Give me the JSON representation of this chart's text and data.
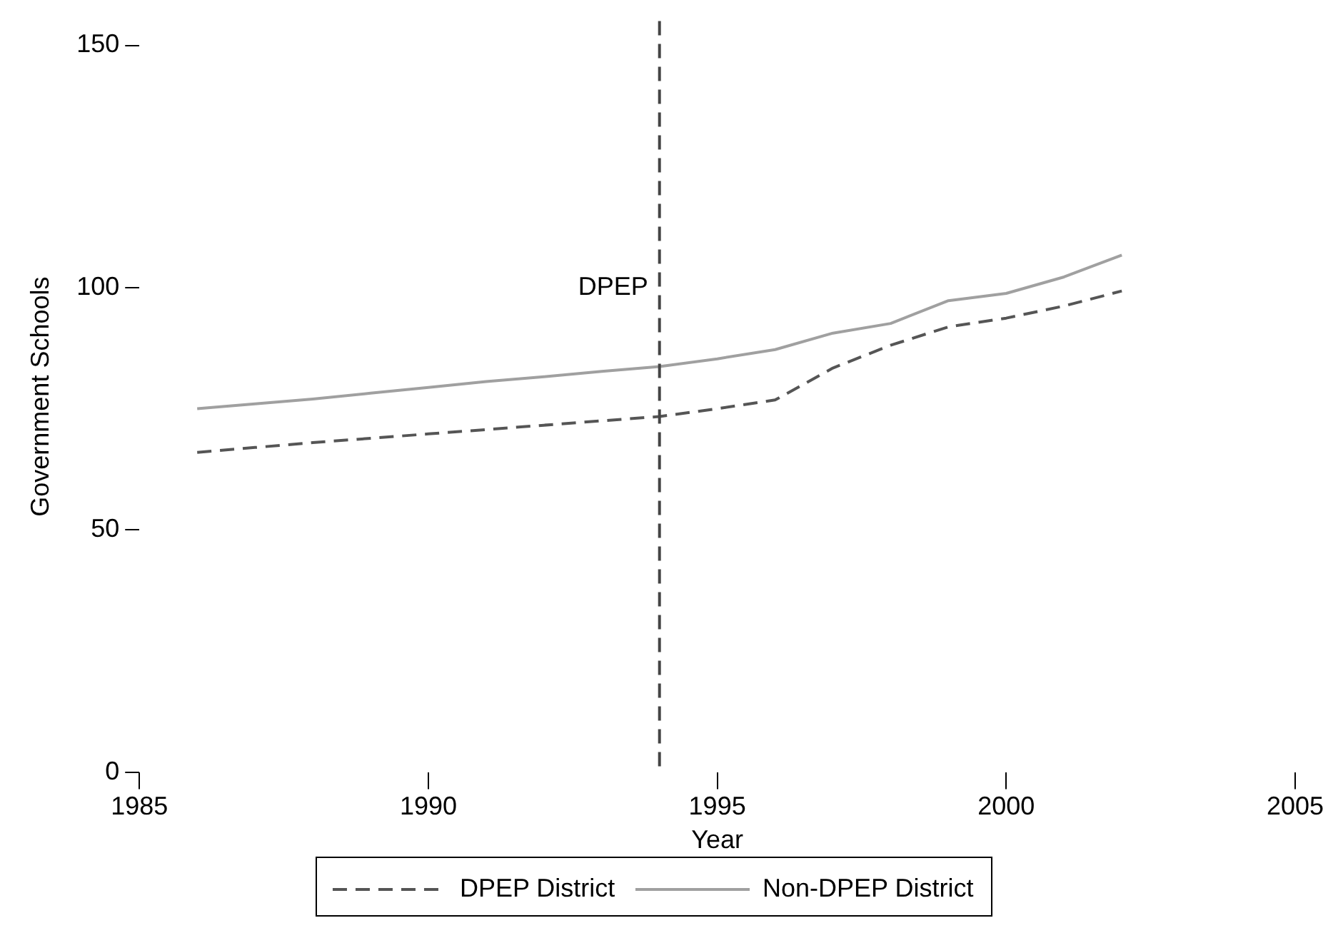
{
  "chart_data": {
    "type": "line",
    "xlabel": "Year",
    "ylabel": "Government Schools",
    "x": [
      1986,
      1987,
      1988,
      1989,
      1990,
      1991,
      1992,
      1993,
      1994,
      1995,
      1996,
      1997,
      1998,
      1999,
      2000,
      2001,
      2002
    ],
    "series": [
      {
        "name": "DPEP District",
        "color": "#555555",
        "line_style": "dashed",
        "values": [
          66,
          67,
          68,
          68.9,
          69.8,
          70.7,
          71.6,
          72.5,
          73.4,
          75,
          76.8,
          83.4,
          88.1,
          91.9,
          93.7,
          96.2,
          99.3
        ]
      },
      {
        "name": "Non-DPEP District",
        "color": "#a0a0a0",
        "line_style": "solid",
        "values": [
          75,
          76,
          77,
          78.2,
          79.4,
          80.6,
          81.6,
          82.7,
          83.7,
          85.3,
          87.2,
          90.6,
          92.6,
          97.3,
          98.8,
          102.2,
          106.7
        ]
      }
    ],
    "xlim": [
      1985,
      2005
    ],
    "xticks": [
      1985,
      1990,
      1995,
      2000,
      2005
    ],
    "ylim": [
      0,
      155
    ],
    "yticks": [
      0,
      50,
      100,
      150
    ],
    "ref_lines": [
      {
        "axis": "x",
        "value": 1994,
        "label": "DPEP",
        "color": "#444444",
        "line_style": "dashed"
      }
    ],
    "grid": false,
    "legend": "bottom",
    "marker": "none"
  }
}
